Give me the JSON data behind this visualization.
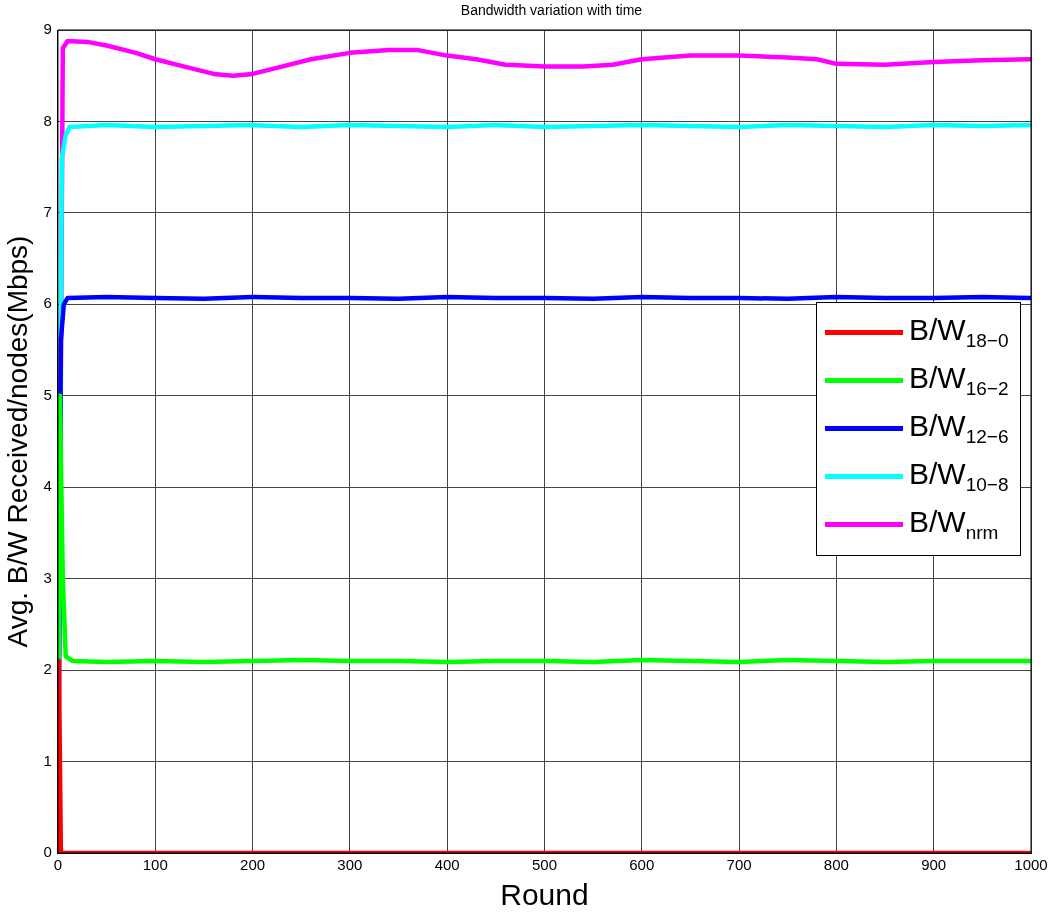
{
  "chart_data": {
    "type": "line",
    "title": "Bandwidth variation with time",
    "xlabel": "Round",
    "ylabel": "Avg. B/W Received/nodes(Mbps)",
    "xlim": [
      0,
      1000
    ],
    "xticks": [
      0,
      100,
      200,
      300,
      400,
      500,
      600,
      700,
      800,
      900,
      1000
    ],
    "ylim": [
      0,
      9
    ],
    "yticks": [
      0,
      1,
      2,
      3,
      4,
      5,
      6,
      7,
      8,
      9
    ],
    "grid": true,
    "legend": "right",
    "marker": "none",
    "line_style": "solid",
    "series": [
      {
        "name": "B/W$_{18−0}$",
        "color": "#ff0000",
        "x": [
          0,
          1,
          3,
          100,
          200,
          300,
          400,
          500,
          600,
          700,
          800,
          900,
          1000
        ],
        "values": [
          0,
          2.1,
          0,
          0,
          0,
          0,
          0,
          0,
          0,
          0,
          0,
          0,
          0
        ]
      },
      {
        "name": "B/W$_{16−2}$",
        "color": "#00ff00",
        "x": [
          0,
          2,
          5,
          8,
          15,
          50,
          100,
          150,
          200,
          250,
          300,
          350,
          400,
          450,
          500,
          550,
          600,
          650,
          700,
          750,
          800,
          850,
          900,
          950,
          1000
        ],
        "values": [
          0,
          5,
          3,
          2.15,
          2.1,
          2.09,
          2.1,
          2.09,
          2.1,
          2.11,
          2.1,
          2.1,
          2.09,
          2.1,
          2.1,
          2.09,
          2.11,
          2.1,
          2.09,
          2.11,
          2.1,
          2.09,
          2.1,
          2.1,
          2.1
        ]
      },
      {
        "name": "B/W$_{12−6}$",
        "color": "#0000ff",
        "x": [
          0,
          3,
          6,
          10,
          50,
          100,
          150,
          200,
          250,
          300,
          350,
          400,
          450,
          500,
          550,
          600,
          650,
          700,
          750,
          800,
          850,
          900,
          950,
          1000
        ],
        "values": [
          0,
          5.6,
          6,
          6.07,
          6.08,
          6.07,
          6.06,
          6.08,
          6.07,
          6.07,
          6.06,
          6.08,
          6.07,
          6.07,
          6.06,
          6.08,
          6.07,
          6.07,
          6.06,
          6.08,
          6.07,
          6.07,
          6.08,
          6.07
        ]
      },
      {
        "name": "B/W$_{10−8}$",
        "color": "#00ffff",
        "x": [
          0,
          4,
          8,
          12,
          50,
          100,
          150,
          200,
          250,
          300,
          350,
          400,
          450,
          500,
          550,
          600,
          650,
          700,
          750,
          800,
          850,
          900,
          950,
          1000
        ],
        "values": [
          0,
          7.6,
          7.85,
          7.94,
          7.96,
          7.94,
          7.95,
          7.96,
          7.94,
          7.96,
          7.95,
          7.94,
          7.96,
          7.94,
          7.95,
          7.96,
          7.95,
          7.94,
          7.96,
          7.95,
          7.94,
          7.96,
          7.95,
          7.96
        ]
      },
      {
        "name": "B/W$_{nrm}$",
        "color": "#ff00ff",
        "x": [
          0,
          5,
          10,
          30,
          50,
          80,
          100,
          130,
          160,
          180,
          200,
          230,
          260,
          300,
          340,
          370,
          400,
          430,
          460,
          500,
          540,
          570,
          600,
          650,
          700,
          750,
          780,
          800,
          850,
          900,
          950,
          1000
        ],
        "values": [
          0,
          8.8,
          8.88,
          8.87,
          8.83,
          8.75,
          8.68,
          8.6,
          8.52,
          8.5,
          8.52,
          8.6,
          8.68,
          8.75,
          8.78,
          8.78,
          8.72,
          8.68,
          8.62,
          8.6,
          8.6,
          8.62,
          8.68,
          8.72,
          8.72,
          8.7,
          8.68,
          8.63,
          8.62,
          8.65,
          8.67,
          8.68
        ]
      }
    ]
  }
}
